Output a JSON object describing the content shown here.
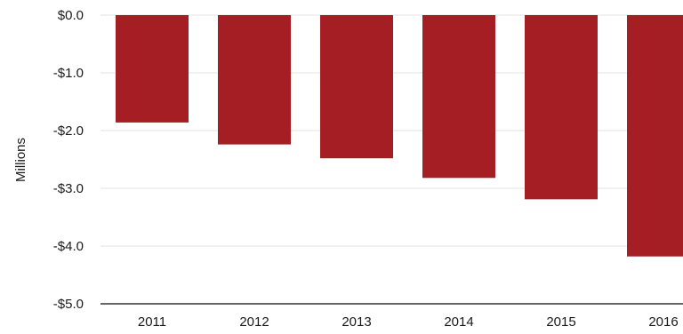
{
  "chart_data": {
    "type": "bar",
    "title": "",
    "xlabel": "",
    "ylabel": "Millions",
    "categories": [
      "2011",
      "2012",
      "2013",
      "2014",
      "2015",
      "2016"
    ],
    "values": [
      -1.86,
      -2.24,
      -2.48,
      -2.82,
      -3.19,
      -4.18
    ],
    "ylim": [
      -5.0,
      0.0
    ],
    "yticks": [
      0.0,
      -1.0,
      -2.0,
      -3.0,
      -4.0,
      -5.0
    ],
    "ytick_labels": [
      "$0.0",
      "-$1.0",
      "-$2.0",
      "-$3.0",
      "-$4.0",
      "-$5.0"
    ],
    "grid": true,
    "bar_color": "#A51E24",
    "grid_color": "#e3e3e3",
    "axis_color": "#333333"
  }
}
